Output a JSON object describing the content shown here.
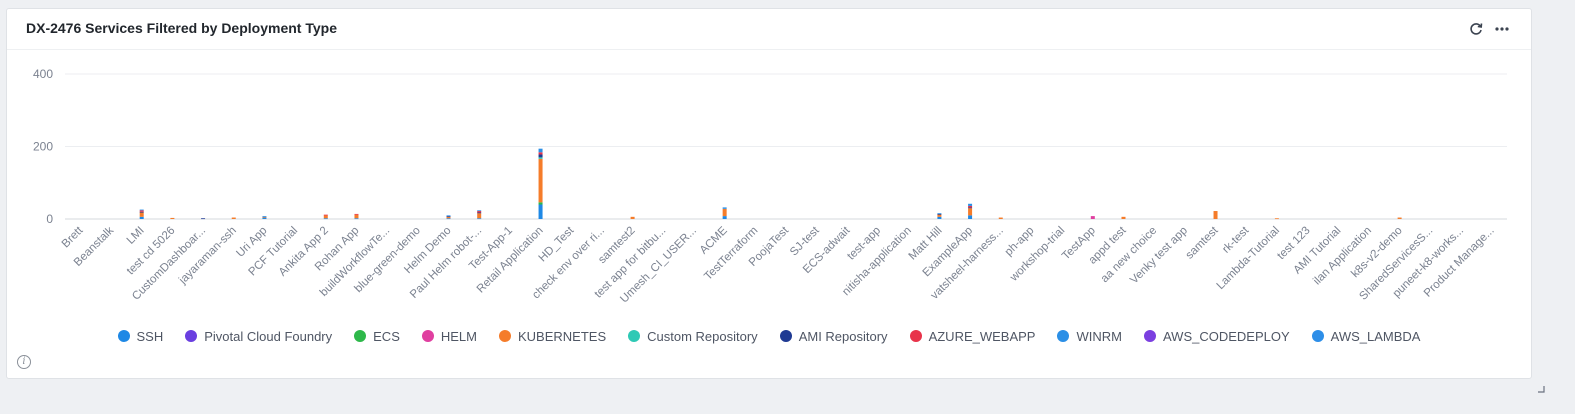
{
  "widget": {
    "title": "DX-2476 Services Filtered by Deployment Type",
    "refresh_icon": "refresh-icon",
    "more_icon": "more-horizontal-icon",
    "info_icon": "info-icon",
    "info_glyph": "i"
  },
  "colors": {
    "SSH": "#1e88e5",
    "Pivotal Cloud Foundry": "#6a3fe0",
    "ECS": "#2eb84a",
    "HELM": "#e03fa0",
    "KUBERNETES": "#f57c2a",
    "Custom Repository": "#2ec9b5",
    "AMI Repository": "#1f3a93",
    "AZURE_WEBAPP": "#e8334a",
    "WINRM": "#2b8fe6",
    "AWS_CODEDEPLOY": "#7b3fe0",
    "AWS_LAMBDA": "#2d8ee8"
  },
  "chart_data": {
    "type": "bar",
    "stacked": true,
    "ylim": [
      0,
      400
    ],
    "yticks": [
      "0",
      "200",
      "400"
    ],
    "legend_position": "bottom",
    "grid": true,
    "legend": [
      "SSH",
      "Pivotal Cloud Foundry",
      "ECS",
      "HELM",
      "KUBERNETES",
      "Custom Repository",
      "AMI Repository",
      "AZURE_WEBAPP",
      "WINRM",
      "AWS_CODEDEPLOY",
      "AWS_LAMBDA"
    ],
    "categories": [
      "Brett",
      "Beanstalk",
      "LMI",
      "test cd 5026",
      "CustomDashboar...",
      "jayaraman-ssh",
      "Uri App",
      "PCF Tutorial",
      "Ankita App 2",
      "Rohan App",
      "buildWorkflowTe...",
      "blue-green-demo",
      "Helm Demo",
      "Paul Helm robot-...",
      "Test-App-1",
      "Retail Application",
      "HD_Test",
      "check env over ri...",
      "samtest2",
      "test app for bitbu...",
      "Umesh_CI_USER...",
      "ACME",
      "TestTerraform",
      "PoojaTest",
      "SJ-test",
      "ECS-adwait",
      "test-app",
      "nitisha-application",
      "Matt Hill",
      "ExampleApp",
      "vatsheel-harness...",
      "ph-app",
      "workshop-trial",
      "TestApp",
      "appd test",
      "aa new choice",
      "Venky test app",
      "samtest",
      "rk-test",
      "Lambda-Tutorial",
      "test 123",
      "AMI Tutorial",
      "ilan Application",
      "k8s-v2-demo",
      "SharedServicesS...",
      "puneet-k8-works...",
      "Product Manage..."
    ],
    "series": [
      {
        "name": "SSH",
        "values": [
          0,
          0,
          6,
          0,
          0,
          0,
          4,
          0,
          2,
          2,
          0,
          0,
          2,
          2,
          0,
          40,
          0,
          0,
          0,
          0,
          0,
          8,
          0,
          0,
          0,
          0,
          0,
          0,
          6,
          10,
          0,
          0,
          0,
          0,
          0,
          0,
          0,
          0,
          0,
          0,
          0,
          0,
          0,
          0,
          0,
          0,
          0
        ]
      },
      {
        "name": "Pivotal Cloud Foundry",
        "values": [
          0,
          0,
          0,
          0,
          0,
          0,
          0,
          0,
          0,
          0,
          0,
          0,
          0,
          0,
          0,
          0,
          0,
          0,
          0,
          0,
          0,
          0,
          0,
          0,
          0,
          0,
          0,
          0,
          0,
          0,
          0,
          0,
          0,
          0,
          0,
          0,
          0,
          0,
          0,
          0,
          0,
          0,
          0,
          0,
          0,
          0,
          0
        ]
      },
      {
        "name": "ECS",
        "values": [
          0,
          0,
          0,
          0,
          0,
          0,
          0,
          0,
          0,
          0,
          0,
          0,
          0,
          0,
          0,
          6,
          0,
          0,
          0,
          0,
          0,
          0,
          0,
          0,
          0,
          0,
          0,
          0,
          0,
          0,
          0,
          0,
          0,
          0,
          0,
          0,
          0,
          0,
          0,
          0,
          0,
          0,
          0,
          0,
          0,
          0,
          0
        ]
      },
      {
        "name": "HELM",
        "values": [
          0,
          0,
          0,
          0,
          0,
          0,
          0,
          0,
          0,
          0,
          0,
          0,
          0,
          0,
          0,
          0,
          0,
          0,
          0,
          0,
          0,
          0,
          0,
          0,
          0,
          0,
          0,
          0,
          0,
          0,
          0,
          0,
          0,
          8,
          0,
          0,
          0,
          0,
          0,
          0,
          0,
          0,
          0,
          0,
          0,
          0,
          0
        ]
      },
      {
        "name": "KUBERNETES",
        "values": [
          0,
          0,
          12,
          3,
          0,
          4,
          2,
          0,
          8,
          10,
          0,
          0,
          4,
          14,
          0,
          120,
          0,
          0,
          6,
          0,
          0,
          20,
          0,
          0,
          0,
          0,
          0,
          0,
          6,
          20,
          4,
          0,
          0,
          0,
          6,
          0,
          0,
          22,
          0,
          2,
          0,
          0,
          0,
          4,
          0,
          0,
          0
        ]
      },
      {
        "name": "Custom Repository",
        "values": [
          0,
          0,
          0,
          0,
          0,
          0,
          0,
          0,
          0,
          0,
          0,
          0,
          0,
          0,
          0,
          4,
          0,
          0,
          0,
          0,
          0,
          0,
          0,
          0,
          0,
          0,
          0,
          0,
          0,
          0,
          0,
          0,
          0,
          0,
          0,
          0,
          0,
          0,
          0,
          0,
          0,
          0,
          0,
          0,
          0,
          0,
          0
        ]
      },
      {
        "name": "AMI Repository",
        "values": [
          0,
          0,
          2,
          0,
          2,
          0,
          0,
          0,
          0,
          0,
          0,
          0,
          2,
          2,
          0,
          8,
          0,
          0,
          0,
          0,
          0,
          0,
          0,
          0,
          0,
          0,
          0,
          0,
          2,
          2,
          0,
          0,
          0,
          0,
          0,
          0,
          0,
          0,
          0,
          0,
          0,
          0,
          0,
          0,
          0,
          0,
          0
        ]
      },
      {
        "name": "AZURE_WEBAPP",
        "values": [
          0,
          0,
          4,
          0,
          0,
          0,
          0,
          0,
          2,
          2,
          0,
          0,
          0,
          4,
          0,
          6,
          0,
          0,
          0,
          0,
          0,
          0,
          0,
          0,
          0,
          0,
          0,
          0,
          0,
          4,
          0,
          0,
          0,
          0,
          0,
          0,
          0,
          0,
          0,
          0,
          0,
          0,
          0,
          0,
          0,
          0,
          0
        ]
      },
      {
        "name": "WINRM",
        "values": [
          0,
          0,
          2,
          0,
          0,
          0,
          2,
          0,
          0,
          0,
          0,
          0,
          2,
          2,
          0,
          10,
          0,
          0,
          0,
          0,
          0,
          4,
          0,
          0,
          0,
          0,
          0,
          0,
          2,
          6,
          0,
          0,
          0,
          0,
          0,
          0,
          0,
          0,
          0,
          0,
          0,
          0,
          0,
          0,
          0,
          0,
          0
        ]
      },
      {
        "name": "AWS_CODEDEPLOY",
        "values": [
          0,
          0,
          0,
          0,
          0,
          0,
          0,
          0,
          0,
          0,
          0,
          0,
          0,
          0,
          0,
          0,
          0,
          0,
          0,
          0,
          0,
          0,
          0,
          0,
          0,
          0,
          0,
          0,
          0,
          0,
          0,
          0,
          0,
          0,
          0,
          0,
          0,
          0,
          0,
          0,
          0,
          0,
          0,
          0,
          0,
          0,
          0
        ]
      },
      {
        "name": "AWS_LAMBDA",
        "values": [
          0,
          0,
          0,
          0,
          0,
          0,
          0,
          0,
          0,
          0,
          0,
          0,
          0,
          0,
          0,
          0,
          0,
          0,
          0,
          0,
          0,
          0,
          0,
          0,
          0,
          0,
          0,
          0,
          0,
          0,
          0,
          0,
          0,
          0,
          0,
          0,
          0,
          0,
          0,
          0,
          0,
          0,
          0,
          0,
          0,
          0,
          0
        ]
      }
    ]
  }
}
